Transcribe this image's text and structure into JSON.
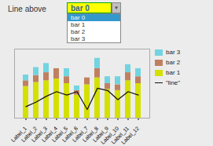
{
  "chart_data": {
    "type": "bar",
    "stacked": true,
    "categories": [
      "Label_1",
      "Label_2",
      "Label_3",
      "Label_4",
      "Label_5",
      "Label_6",
      "Label_7",
      "Label_8",
      "Label_9",
      "Label_10",
      "Label_11",
      "Label_12"
    ],
    "series": [
      {
        "name": "bar 1",
        "type": "bar",
        "color": "#d4e000",
        "values": [
          55,
          62,
          65,
          68,
          60,
          40,
          58,
          70,
          50,
          48,
          65,
          60
        ]
      },
      {
        "name": "bar 2",
        "type": "bar",
        "color": "#c08060",
        "values": [
          10,
          12,
          14,
          18,
          12,
          8,
          12,
          16,
          10,
          10,
          14,
          12
        ]
      },
      {
        "name": "bar 3",
        "type": "bar",
        "color": "#72d4e0",
        "values": [
          10,
          14,
          16,
          0,
          14,
          8,
          0,
          18,
          12,
          14,
          14,
          14
        ]
      },
      {
        "name": "\"line\"",
        "type": "line",
        "color": "#111111",
        "values": [
          20,
          28,
          38,
          46,
          40,
          46,
          15,
          52,
          48,
          32,
          46,
          40
        ]
      }
    ],
    "ylim": [
      0,
      120
    ],
    "tick_labels": "x",
    "grid": false,
    "legend": "right",
    "annotations": [
      "Line above",
      "bar 0",
      "▼",
      "bar 0",
      "bar 1",
      "bar 2",
      "bar 3"
    ]
  }
}
